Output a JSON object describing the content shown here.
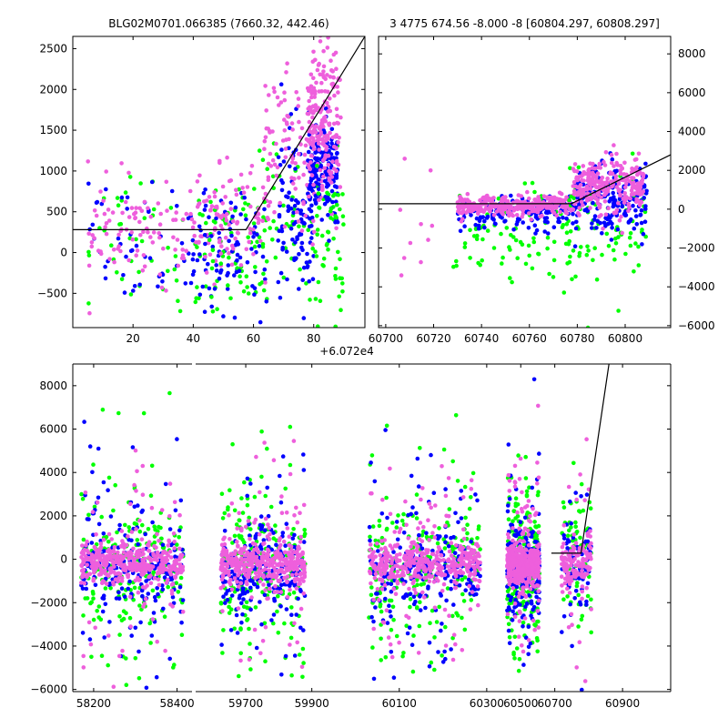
{
  "colors": {
    "green": "#00ff00",
    "blue": "#0000ff",
    "pink": "#ee5fdc",
    "line": "#000000",
    "axis": "#000000"
  },
  "chart_data": [
    {
      "id": "top-left",
      "type": "scatter",
      "title": "BLG02M0701.066385 (7660.32, 442.46)",
      "x_offset_label": "+6.072e4",
      "xlim": [
        0,
        97
      ],
      "ylim": [
        -920,
        2650
      ],
      "xticks": [
        20,
        40,
        60,
        80
      ],
      "yticks": [
        -500,
        0,
        500,
        1000,
        1500,
        2000,
        2500
      ],
      "ytick_side": "left",
      "model_line": [
        [
          0,
          280
        ],
        [
          57.5,
          280
        ],
        [
          97,
          2650
        ]
      ],
      "clusters": [
        {
          "color": "green",
          "n": 60,
          "x": [
            5,
            50
          ],
          "y": [
            -800,
            1100
          ]
        },
        {
          "color": "blue",
          "n": 80,
          "x": [
            5,
            55
          ],
          "y": [
            -700,
            800
          ]
        },
        {
          "color": "pink",
          "n": 140,
          "x": [
            5,
            55
          ],
          "y": [
            -300,
            900
          ]
        },
        {
          "color": "green",
          "n": 70,
          "x": [
            45,
            65
          ],
          "y": [
            -900,
            900
          ]
        },
        {
          "color": "blue",
          "n": 60,
          "x": [
            42,
            65
          ],
          "y": [
            -800,
            700
          ]
        },
        {
          "color": "pink",
          "n": 60,
          "x": [
            45,
            65
          ],
          "y": [
            -200,
            1000
          ]
        },
        {
          "color": "green",
          "n": 60,
          "x": [
            63,
            90
          ],
          "y": [
            -850,
            1600
          ]
        },
        {
          "color": "blue",
          "n": 110,
          "x": [
            68,
            80
          ],
          "y": [
            -600,
            1500
          ]
        },
        {
          "color": "pink",
          "n": 130,
          "x": [
            63,
            85
          ],
          "y": [
            300,
            2200
          ]
        },
        {
          "color": "blue",
          "n": 160,
          "x": [
            78,
            88
          ],
          "y": [
            400,
            1600
          ]
        },
        {
          "color": "pink",
          "n": 180,
          "x": [
            78,
            89
          ],
          "y": [
            600,
            2550
          ]
        },
        {
          "color": "green",
          "n": 40,
          "x": [
            80,
            90
          ],
          "y": [
            -900,
            1000
          ]
        }
      ]
    },
    {
      "id": "top-right",
      "type": "scatter",
      "title": "3 4775 674.56 -8.000 -8 [60804.297, 60808.297]",
      "xlim": [
        60697,
        60819
      ],
      "ylim": [
        -6100,
        8900
      ],
      "xticks": [
        60700,
        60720,
        60740,
        60760,
        60780,
        60800
      ],
      "yticks": [
        -6000,
        -4000,
        -2000,
        0,
        2000,
        4000,
        6000,
        8000
      ],
      "ytick_side": "right",
      "model_line": [
        [
          60697,
          280
        ],
        [
          60777.5,
          280
        ],
        [
          60819,
          2800
        ]
      ],
      "clusters": [
        {
          "color": "green",
          "n": 80,
          "x": [
            60727,
            60777
          ],
          "y": [
            -4000,
            1000
          ]
        },
        {
          "color": "blue",
          "n": 160,
          "x": [
            60730,
            60777
          ],
          "y": [
            -1000,
            600
          ]
        },
        {
          "color": "pink",
          "n": 300,
          "x": [
            60730,
            60778
          ],
          "y": [
            -300,
            700
          ]
        },
        {
          "color": "green",
          "n": 80,
          "x": [
            60776,
            60809
          ],
          "y": [
            -5200,
            2500
          ]
        },
        {
          "color": "blue",
          "n": 200,
          "x": [
            60778,
            60809
          ],
          "y": [
            -1500,
            2400
          ]
        },
        {
          "color": "pink",
          "n": 260,
          "x": [
            60778,
            60808
          ],
          "y": [
            -300,
            2500
          ]
        },
        {
          "color": "pink",
          "n": 10,
          "x": [
            60705,
            60720
          ],
          "y": [
            -4600,
            2400
          ]
        }
      ]
    },
    {
      "id": "bottom",
      "type": "scatter",
      "xlim_segments": [
        [
          58150,
          58438
        ],
        [
          58438,
          61042
        ]
      ],
      "ylim": [
        -6100,
        9000
      ],
      "xticks": [
        58200,
        58400,
        59700,
        59900,
        60100,
        60300,
        60500,
        60700,
        60900
      ],
      "yticks": [
        -6000,
        -4000,
        -2000,
        0,
        2000,
        4000,
        6000,
        8000
      ],
      "ytick_side": "left",
      "model_line": [
        [
          60680,
          280
        ],
        [
          60777.5,
          280
        ],
        [
          60860,
          9000
        ]
      ],
      "seasons": [
        {
          "x": [
            58170,
            58415
          ]
        },
        {
          "x": [
            59625,
            59880
          ]
        },
        {
          "x": [
            60030,
            60285
          ]
        },
        {
          "x": [
            60420,
            60610
          ]
        },
        {
          "x": [
            60720,
            60810
          ]
        }
      ]
    }
  ]
}
